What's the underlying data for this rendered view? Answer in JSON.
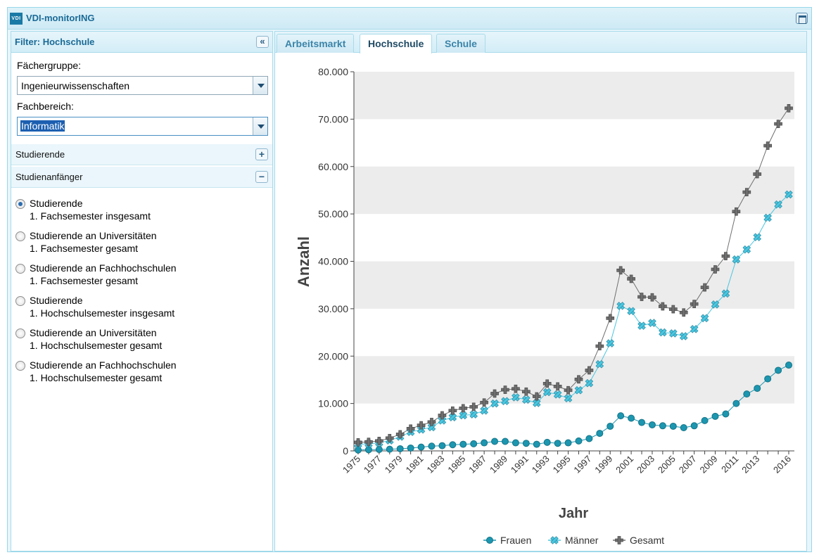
{
  "app": {
    "logo_text": "VDI",
    "title": "VDI-monitorING"
  },
  "filter": {
    "title": "Filter: Hochschule",
    "collapse_glyph": "«",
    "faechergruppe_label": "Fächergruppe:",
    "faechergruppe_value": "Ingenieurwissenschaften",
    "fachbereich_label": "Fachbereich:",
    "fachbereich_value": "Informatik",
    "sections": [
      {
        "label": "Studierende",
        "toggle": "+"
      },
      {
        "label": "Studienanfänger",
        "toggle": "−"
      }
    ],
    "options": [
      {
        "line1": "Studierende",
        "line2": "1. Fachsemester insgesamt",
        "checked": true
      },
      {
        "line1": "Studierende an Universitäten",
        "line2": "1. Fachsemester gesamt",
        "checked": false
      },
      {
        "line1": "Studierende an Fachhochschulen",
        "line2": "1. Fachsemester gesamt",
        "checked": false
      },
      {
        "line1": "Studierende",
        "line2": "1. Hochschulsemester insgesamt",
        "checked": false
      },
      {
        "line1": "Studierende an Universitäten",
        "line2": "1. Hochschulsemester gesamt",
        "checked": false
      },
      {
        "line1": "Studierende an Fachhochschulen",
        "line2": "1. Hochschulsemester gesamt",
        "checked": false
      }
    ]
  },
  "tabs": [
    {
      "label": "Arbeitsmarkt",
      "active": false
    },
    {
      "label": "Hochschule",
      "active": true
    },
    {
      "label": "Schule",
      "active": false
    }
  ],
  "chart_data": {
    "type": "line",
    "title": "",
    "xlabel": "Jahr",
    "ylabel": "Anzahl",
    "ylim": [
      0,
      80000
    ],
    "yticks": [
      0,
      10000,
      20000,
      30000,
      40000,
      50000,
      60000,
      70000,
      80000
    ],
    "ytick_labels": [
      "0",
      "10.000",
      "20.000",
      "30.000",
      "40.000",
      "50.000",
      "60.000",
      "70.000",
      "80.000"
    ],
    "x": [
      1975,
      1976,
      1977,
      1978,
      1979,
      1980,
      1981,
      1982,
      1983,
      1984,
      1985,
      1986,
      1987,
      1988,
      1989,
      1990,
      1991,
      1992,
      1993,
      1994,
      1995,
      1996,
      1997,
      1998,
      1999,
      2000,
      2001,
      2002,
      2003,
      2004,
      2005,
      2006,
      2007,
      2008,
      2009,
      2010,
      2011,
      2012,
      2013,
      2014,
      2015,
      2016
    ],
    "xtick_labels": [
      "1975",
      "1977",
      "1979",
      "1981",
      "1983",
      "1985",
      "1987",
      "1989",
      "1991",
      "1993",
      "1995",
      "1997",
      "1999",
      "2001",
      "2003",
      "2005",
      "2007",
      "2009",
      "2011",
      "2013",
      "2016"
    ],
    "grid": "alternating horizontal bands",
    "legend_position": "bottom",
    "series": [
      {
        "name": "Frauen",
        "color": "#1d96b0",
        "marker": "circle",
        "values": [
          200,
          250,
          300,
          350,
          450,
          600,
          800,
          1000,
          1100,
          1300,
          1400,
          1500,
          1700,
          2000,
          2000,
          1700,
          1600,
          1400,
          1800,
          1600,
          1700,
          2100,
          2600,
          3700,
          5200,
          7400,
          6900,
          6000,
          5500,
          5300,
          5200,
          4900,
          5300,
          6400,
          7300,
          7800,
          10000,
          12000,
          13200,
          15200,
          17000,
          18100
        ]
      },
      {
        "name": "Männer",
        "color": "#49c6df",
        "marker": "x",
        "values": [
          1400,
          1500,
          1700,
          2200,
          3000,
          4000,
          4500,
          5000,
          6400,
          7100,
          7500,
          7700,
          8500,
          10000,
          10500,
          11300,
          10800,
          10100,
          12400,
          11900,
          11100,
          12800,
          14300,
          18300,
          22700,
          30600,
          29500,
          26400,
          27000,
          25000,
          24800,
          24200,
          25700,
          28000,
          30900,
          33200,
          40400,
          42500,
          45100,
          49200,
          52000,
          54100
        ]
      },
      {
        "name": "Gesamt",
        "color": "#6f6f6f",
        "marker": "plus",
        "values": [
          1800,
          1900,
          2100,
          2700,
          3500,
          4700,
          5400,
          6100,
          7500,
          8500,
          9000,
          9300,
          10200,
          12100,
          12900,
          13100,
          12500,
          11500,
          14200,
          13600,
          12800,
          15100,
          17000,
          22100,
          28000,
          38100,
          36300,
          32500,
          32400,
          30500,
          29900,
          29200,
          31000,
          34500,
          38300,
          41100,
          50500,
          54600,
          58400,
          64400,
          69000,
          72300
        ]
      }
    ]
  }
}
